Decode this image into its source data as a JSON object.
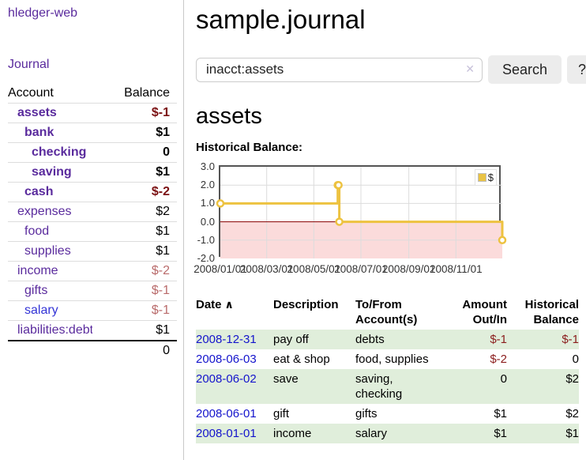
{
  "app": {
    "brand": "hledger-web",
    "journal_label": "Journal"
  },
  "sidebar": {
    "header": {
      "account": "Account",
      "balance": "Balance"
    },
    "accounts": [
      {
        "name": "assets",
        "balance": "$-1",
        "depth": 1,
        "in_query": true
      },
      {
        "name": "bank",
        "balance": "$1",
        "depth": 2,
        "in_query": true
      },
      {
        "name": "checking",
        "balance": "0",
        "depth": 3,
        "in_query": true
      },
      {
        "name": "saving",
        "balance": "$1",
        "depth": 3,
        "in_query": true
      },
      {
        "name": "cash",
        "balance": "$-2",
        "depth": 2,
        "in_query": true
      },
      {
        "name": "expenses",
        "balance": "$2",
        "depth": 1
      },
      {
        "name": "food",
        "balance": "$1",
        "depth": 2
      },
      {
        "name": "supplies",
        "balance": "$1",
        "depth": 2
      },
      {
        "name": "income",
        "balance": "$-2",
        "depth": 1
      },
      {
        "name": "gifts",
        "balance": "$-1",
        "depth": 2
      },
      {
        "name": "salary",
        "balance": "$-1",
        "depth": 2,
        "unvisited": true
      },
      {
        "name": "liabilities:debts",
        "balance": "$1",
        "depth": 1
      }
    ],
    "total": "0"
  },
  "header": {
    "title": "sample.journal"
  },
  "search": {
    "value": "inacct:assets",
    "clear_glyph": "✕",
    "button_label": "Search",
    "help_label": "?"
  },
  "account_page": {
    "title": "assets",
    "chart_label": "Historical Balance:"
  },
  "chart_data": {
    "type": "line",
    "step": true,
    "title": "Historical Balance",
    "xlim": [
      "2008-01-01",
      "2008-12-31"
    ],
    "ylim": [
      -2,
      3
    ],
    "x_tick_labels": [
      "2008/01/01",
      "2008/03/01",
      "2008/05/01",
      "2008/07/01",
      "2008/09/01",
      "2008/11/01"
    ],
    "y_tick_labels": [
      "3.0",
      "2.0",
      "1.0",
      "0.0",
      "-1.0",
      "-2.0"
    ],
    "y_gridlines": [
      2,
      1,
      0,
      -1
    ],
    "series": [
      {
        "name": "$",
        "color": "#edc240",
        "points": [
          [
            "2008-01-01",
            1
          ],
          [
            "2008-06-01",
            2
          ],
          [
            "2008-06-02",
            2
          ],
          [
            "2008-06-03",
            0
          ],
          [
            "2008-12-31",
            -1
          ]
        ]
      }
    ],
    "negative_region_color": "#fbdbdb",
    "zero_line_color": "#8b0000",
    "grid_color": "#dcdcdc",
    "legend_position": "top-right"
  },
  "register": {
    "columns": [
      "Date",
      "Description",
      "To/From Account(s)",
      "Amount Out/In",
      "Historical Balance"
    ],
    "sort_icon": "∧",
    "rows": [
      {
        "date": "2008-12-31",
        "description": "pay off",
        "accounts": "debts",
        "amount": "$-1",
        "balance": "$-1"
      },
      {
        "date": "2008-06-03",
        "description": "eat & shop",
        "accounts": "food, supplies",
        "amount": "$-2",
        "balance": "0"
      },
      {
        "date": "2008-06-02",
        "description": "save",
        "accounts": "saving, checking",
        "amount": "0",
        "balance": "$2"
      },
      {
        "date": "2008-06-01",
        "description": "gift",
        "accounts": "gifts",
        "amount": "$1",
        "balance": "$2"
      },
      {
        "date": "2008-01-01",
        "description": "income",
        "accounts": "salary",
        "amount": "$1",
        "balance": "$1"
      }
    ]
  }
}
